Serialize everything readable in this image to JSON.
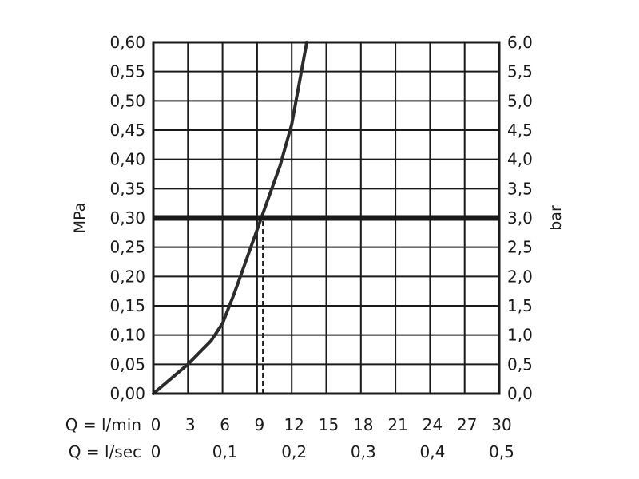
{
  "chart_data": {
    "type": "line",
    "title": "",
    "ylabel_left": "MPa",
    "ylabel_right": "bar",
    "xlabel_rows": [
      "Q = l/min",
      "Q = l/sec"
    ],
    "x_ticks_lmin": [
      "0",
      "3",
      "6",
      "9",
      "12",
      "15",
      "18",
      "21",
      "24",
      "27",
      "30"
    ],
    "x_ticks_lsec": [
      "0",
      "0,1",
      "0,2",
      "0,3",
      "0,4",
      "0,5"
    ],
    "x_ticks_lsec_values": [
      0,
      6,
      12,
      18,
      24,
      30
    ],
    "y_ticks_left": [
      "0,00",
      "0,05",
      "0,10",
      "0,15",
      "0,20",
      "0,25",
      "0,30",
      "0,35",
      "0,40",
      "0,45",
      "0,50",
      "0,55",
      "0,60"
    ],
    "y_ticks_right": [
      "0,0",
      "0,5",
      "1,0",
      "1,5",
      "2,0",
      "2,5",
      "3,0",
      "3,5",
      "4,0",
      "4,5",
      "5,0",
      "5,5",
      "6,0"
    ],
    "xlim": [
      0,
      30
    ],
    "ylim": [
      0,
      0.6
    ],
    "grid": true,
    "series": [
      {
        "x": [
          0,
          3,
          5,
          6,
          7,
          8,
          9,
          10,
          11,
          12,
          13.3
        ],
        "y": [
          0,
          0.05,
          0.09,
          0.12,
          0.17,
          0.225,
          0.28,
          0.335,
          0.39,
          0.46,
          0.6
        ],
        "color": "#2b2b2b"
      }
    ],
    "reference_line": {
      "y": 0.3,
      "color": "#1a1a1a"
    },
    "marker_line": {
      "x": 9.5,
      "y": 0.3,
      "style": "dashed"
    }
  }
}
